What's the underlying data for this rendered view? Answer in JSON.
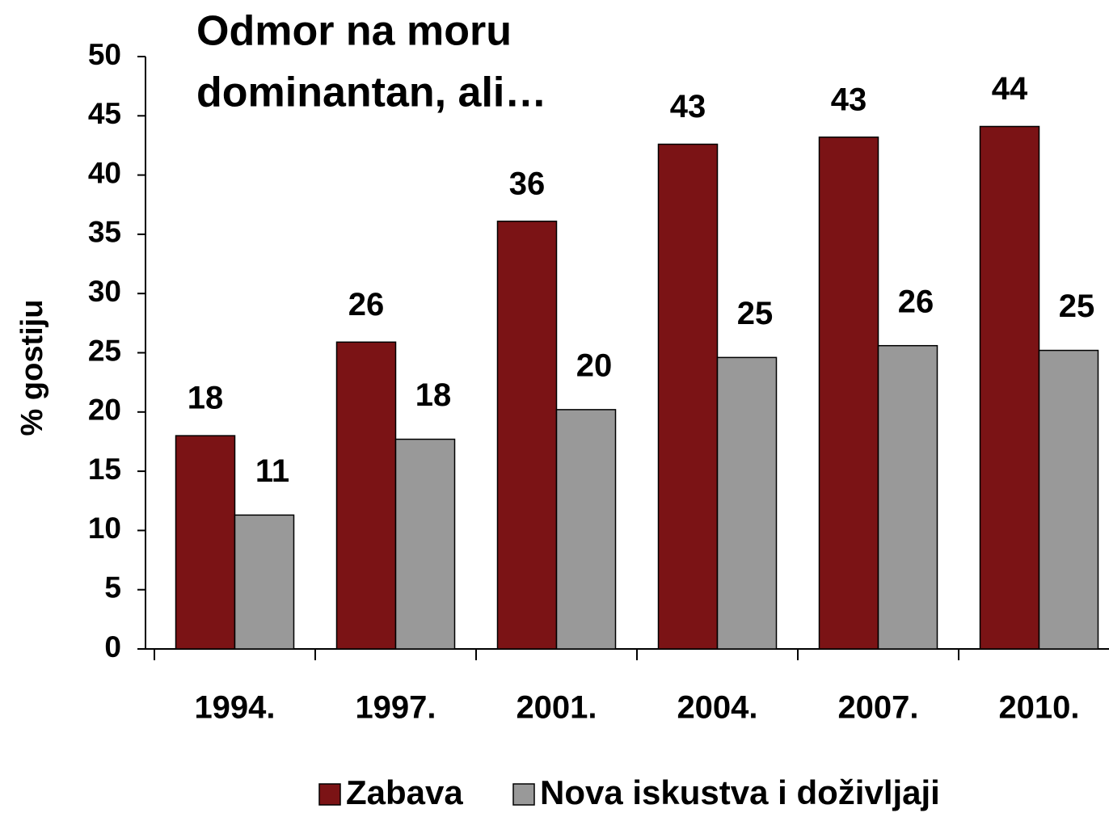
{
  "chart_data": {
    "type": "bar",
    "title": [
      "Odmor na moru",
      "dominantan, ali…"
    ],
    "y_label": "% gostiju",
    "categories": [
      "1994.",
      "1997.",
      "2001.",
      "2004.",
      "2007.",
      "2010."
    ],
    "series": [
      {
        "name": "Zabava",
        "color": "#7b1315",
        "values": [
          18,
          25.9,
          36.1,
          42.6,
          43.2,
          44.1
        ],
        "value_labels": [
          "18",
          "26",
          "36",
          "43",
          "43",
          "44"
        ]
      },
      {
        "name": "Nova iskustva i doživljaji",
        "color": "#999999",
        "values": [
          11.3,
          17.7,
          20.2,
          24.6,
          25.6,
          25.2
        ],
        "value_labels": [
          "11",
          "18",
          "20",
          "25",
          "26",
          "25"
        ]
      }
    ],
    "ylim": [
      0,
      50
    ],
    "yticks": [
      0,
      5,
      10,
      15,
      20,
      25,
      30,
      35,
      40,
      45,
      50
    ],
    "legend": "bottom"
  }
}
